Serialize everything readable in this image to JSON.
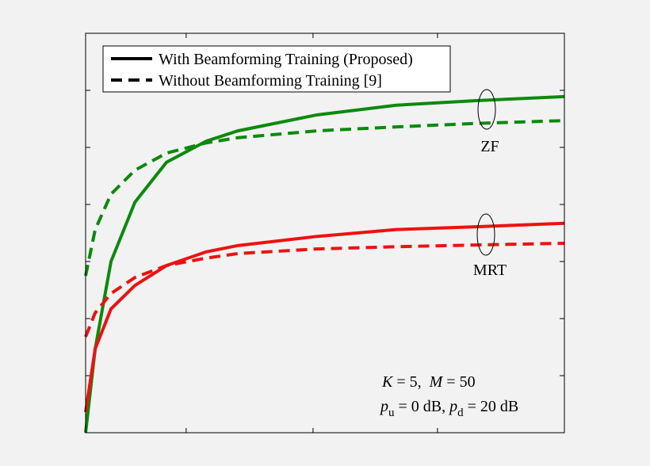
{
  "chart_data": {
    "type": "line",
    "x": [
      0,
      2,
      5.3,
      10.3,
      16.9,
      25.2,
      31.8,
      48.3,
      64.9,
      81.5,
      100
    ],
    "xlim": [
      0,
      100
    ],
    "xticks": [
      0,
      21,
      47.5,
      73.5,
      100
    ],
    "ylim": [
      0,
      7
    ],
    "yticks": [
      0,
      1,
      2,
      3,
      4,
      5,
      6,
      7
    ],
    "series": [
      {
        "color": "#0b8a0b",
        "dashed": false,
        "values": [
          0,
          1.47,
          3.0,
          4.04,
          4.74,
          5.11,
          5.29,
          5.57,
          5.74,
          5.82,
          5.89
        ]
      },
      {
        "color": "#0b8a0b",
        "dashed": true,
        "values": [
          2.75,
          3.56,
          4.18,
          4.6,
          4.9,
          5.08,
          5.17,
          5.29,
          5.36,
          5.42,
          5.47
        ]
      },
      {
        "color": "#ee1111",
        "dashed": false,
        "values": [
          0.36,
          1.47,
          2.17,
          2.58,
          2.93,
          3.17,
          3.28,
          3.44,
          3.56,
          3.61,
          3.67
        ]
      },
      {
        "color": "#ee1111",
        "dashed": true,
        "values": [
          1.68,
          2.1,
          2.44,
          2.72,
          2.93,
          3.06,
          3.14,
          3.22,
          3.26,
          3.29,
          3.32
        ]
      }
    ],
    "legend": {
      "corner": "top-left",
      "entries": [
        {
          "label": "With Beamforming Training (Proposed)",
          "dashed": false
        },
        {
          "label": "Without Beamforming Training [9]",
          "dashed": true
        }
      ]
    },
    "annotations": [
      "ZF",
      "MRT"
    ],
    "params": {
      "line1": [
        "K",
        " = 5,  ",
        "M",
        " = 50"
      ],
      "line2": [
        "p",
        "u",
        " = 0 dB, ",
        "p",
        "d",
        " = 20 dB"
      ]
    }
  }
}
